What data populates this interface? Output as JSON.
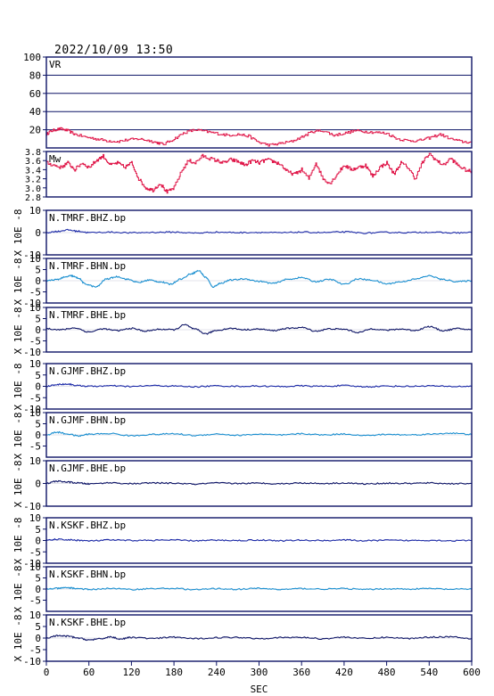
{
  "title": "2022/10/09  13:50",
  "chart_data": {
    "type": "line",
    "x_axis": {
      "label": "SEC",
      "range": [
        0,
        600
      ],
      "ticks": [
        0,
        60,
        120,
        180,
        240,
        300,
        360,
        420,
        480,
        540,
        600
      ]
    },
    "panels": [
      {
        "id": "vr",
        "label": "VR",
        "ylim": [
          0,
          100
        ],
        "yticks": [
          20,
          40,
          60,
          80,
          100
        ],
        "gridlines": [
          20,
          40,
          60,
          80
        ],
        "color": "#e0184a",
        "x": [
          0,
          5,
          12,
          20,
          30,
          40,
          55,
          70,
          85,
          100,
          115,
          130,
          145,
          155,
          165,
          180,
          195,
          210,
          225,
          240,
          255,
          270,
          285,
          300,
          315,
          330,
          345,
          360,
          375,
          390,
          405,
          420,
          435,
          450,
          465,
          480,
          495,
          510,
          525,
          540,
          555,
          570,
          585,
          600
        ],
        "values": [
          15,
          18,
          20,
          21,
          19,
          15,
          12,
          10,
          8,
          7,
          9,
          10,
          8,
          6,
          4,
          10,
          17,
          20,
          18,
          16,
          14,
          15,
          13,
          6,
          3,
          5,
          7,
          12,
          18,
          19,
          14,
          16,
          19,
          18,
          17,
          16,
          10,
          8,
          8,
          11,
          15,
          10,
          7,
          6
        ]
      },
      {
        "id": "mw",
        "label": "Mw",
        "ylim": [
          2.8,
          3.8
        ],
        "yticks": [
          2.8,
          3.0,
          3.2,
          3.4,
          3.6,
          3.8
        ],
        "gridlines": [],
        "color": "#e0184a",
        "x": [
          0,
          10,
          20,
          30,
          40,
          50,
          60,
          70,
          80,
          90,
          100,
          110,
          120,
          130,
          140,
          150,
          160,
          170,
          180,
          190,
          200,
          210,
          220,
          230,
          240,
          250,
          260,
          270,
          280,
          290,
          300,
          310,
          320,
          330,
          340,
          350,
          360,
          370,
          380,
          390,
          400,
          410,
          420,
          430,
          440,
          450,
          460,
          470,
          480,
          490,
          500,
          510,
          520,
          530,
          540,
          550,
          560,
          570,
          580,
          590,
          600
        ],
        "values": [
          3.55,
          3.5,
          3.45,
          3.55,
          3.4,
          3.55,
          3.45,
          3.6,
          3.7,
          3.5,
          3.55,
          3.45,
          3.55,
          3.2,
          3.0,
          2.95,
          3.1,
          2.9,
          3.0,
          3.35,
          3.6,
          3.55,
          3.7,
          3.65,
          3.6,
          3.55,
          3.62,
          3.58,
          3.5,
          3.6,
          3.55,
          3.62,
          3.58,
          3.52,
          3.35,
          3.3,
          3.4,
          3.2,
          3.55,
          3.2,
          3.1,
          3.3,
          3.5,
          3.4,
          3.45,
          3.5,
          3.25,
          3.45,
          3.55,
          3.3,
          3.55,
          3.45,
          3.2,
          3.55,
          3.75,
          3.6,
          3.5,
          3.65,
          3.5,
          3.4,
          3.35
        ]
      },
      {
        "id": "tmrf-bhz",
        "label": "N.TMRF.BHZ.bp",
        "ylim": [
          -10,
          10
        ],
        "yticks": [
          -10,
          0,
          10
        ],
        "color": "#1c2aa8",
        "x": [
          0,
          15,
          30,
          45,
          60,
          90,
          120,
          150,
          180,
          210,
          240,
          270,
          300,
          330,
          360,
          390,
          420,
          450,
          480,
          510,
          540,
          570,
          600
        ],
        "values": [
          0,
          0.5,
          1.2,
          0.6,
          0,
          0.2,
          -0.1,
          0.1,
          0.2,
          -0.2,
          0.2,
          0,
          0.1,
          -0.1,
          0.2,
          0,
          0.3,
          -0.2,
          0.1,
          0,
          0.2,
          -0.1,
          0
        ]
      },
      {
        "id": "tmrf-bhn",
        "label": "N.TMRF.BHN.bp",
        "ylim": [
          -10,
          10
        ],
        "yticks": [
          -10,
          -5,
          0,
          5,
          10
        ],
        "color": "#1a8fd0",
        "x": [
          0,
          15,
          25,
          35,
          45,
          55,
          70,
          85,
          100,
          115,
          130,
          145,
          160,
          175,
          190,
          205,
          215,
          225,
          235,
          245,
          260,
          280,
          300,
          320,
          340,
          360,
          380,
          400,
          420,
          440,
          460,
          480,
          500,
          520,
          540,
          560,
          580,
          600
        ],
        "values": [
          0,
          0.5,
          1.5,
          2.2,
          1.2,
          -1.5,
          -2.8,
          0.8,
          1.8,
          0.6,
          -0.8,
          0.3,
          -0.5,
          -1.5,
          0.8,
          3.2,
          4.5,
          1.5,
          -2.8,
          -1.2,
          0.3,
          0.8,
          -0.3,
          -1.2,
          0.6,
          1.4,
          -0.4,
          0.6,
          -1.6,
          0.8,
          0.2,
          -1.4,
          -0.5,
          0.7,
          2.2,
          0.5,
          -0.4,
          0
        ]
      },
      {
        "id": "tmrf-bhe",
        "label": "N.TMRF.BHE.bp",
        "ylim": [
          -10,
          10
        ],
        "yticks": [
          -10,
          -5,
          0,
          5,
          10
        ],
        "color": "#0d1466",
        "x": [
          0,
          20,
          40,
          60,
          80,
          100,
          120,
          140,
          160,
          180,
          195,
          210,
          225,
          240,
          260,
          280,
          300,
          320,
          340,
          360,
          380,
          400,
          420,
          440,
          460,
          480,
          500,
          520,
          540,
          560,
          580,
          600
        ],
        "values": [
          0.5,
          0,
          0.8,
          -1.0,
          0.4,
          -0.4,
          0.6,
          -0.6,
          0.2,
          0,
          2.2,
          0.2,
          -1.8,
          -0.3,
          0.6,
          0,
          0.3,
          -0.4,
          0.6,
          1.0,
          -0.6,
          0.4,
          0.2,
          -1.2,
          0.4,
          -0.2,
          0.3,
          -0.3,
          1.4,
          -0.4,
          0.5,
          0
        ]
      },
      {
        "id": "gjmf-bhz",
        "label": "N.GJMF.BHZ.bp",
        "ylim": [
          -10,
          10
        ],
        "yticks": [
          -10,
          -5,
          0,
          5,
          10
        ],
        "color": "#1c2aa8",
        "x": [
          0,
          15,
          30,
          45,
          60,
          90,
          120,
          150,
          180,
          210,
          240,
          270,
          300,
          330,
          360,
          390,
          420,
          450,
          480,
          510,
          540,
          570,
          600
        ],
        "values": [
          0,
          0.8,
          1.0,
          0.3,
          0,
          0.2,
          -0.1,
          0.3,
          0.1,
          -0.2,
          0.2,
          0,
          0.1,
          -0.1,
          0.2,
          0,
          0.3,
          -0.2,
          0.1,
          0,
          0.2,
          -0.1,
          0
        ]
      },
      {
        "id": "gjmf-bhn",
        "label": "N.GJMF.BHN.bp",
        "ylim": [
          -10,
          10
        ],
        "yticks": [
          -5,
          0,
          5,
          10
        ],
        "color": "#1a8fd0",
        "x": [
          0,
          15,
          30,
          45,
          60,
          90,
          120,
          150,
          180,
          210,
          240,
          270,
          300,
          330,
          360,
          390,
          420,
          450,
          480,
          510,
          540,
          570,
          600
        ],
        "values": [
          0,
          1.2,
          0.4,
          -0.5,
          0.3,
          0.6,
          -0.4,
          0.2,
          0.5,
          -0.3,
          0.4,
          -0.2,
          0.3,
          -0.1,
          0.5,
          0,
          0.4,
          -0.3,
          0.2,
          0,
          0.3,
          0.8,
          0.2
        ]
      },
      {
        "id": "gjmf-bhe",
        "label": "N.GJMF.BHE.bp",
        "ylim": [
          -10,
          10
        ],
        "yticks": [
          -10,
          0,
          10
        ],
        "color": "#0d1466",
        "x": [
          0,
          15,
          30,
          45,
          60,
          90,
          120,
          150,
          180,
          210,
          240,
          270,
          300,
          330,
          360,
          390,
          420,
          450,
          480,
          510,
          540,
          570,
          600
        ],
        "values": [
          0,
          1.0,
          0.6,
          0.2,
          -0.2,
          0.3,
          -0.1,
          0.2,
          0.1,
          -0.3,
          0.2,
          0,
          0.1,
          -0.1,
          0.2,
          0,
          0.2,
          -0.2,
          0.1,
          0,
          0.2,
          -0.1,
          0
        ]
      },
      {
        "id": "kskf-bhz",
        "label": "N.KSKF.BHZ.bp",
        "ylim": [
          -10,
          10
        ],
        "yticks": [
          -10,
          -5,
          0,
          5,
          10
        ],
        "color": "#1c2aa8",
        "x": [
          0,
          15,
          30,
          45,
          60,
          90,
          120,
          150,
          180,
          210,
          240,
          270,
          300,
          330,
          360,
          390,
          420,
          450,
          480,
          510,
          540,
          570,
          600
        ],
        "values": [
          0,
          0.5,
          0.3,
          0.1,
          -0.2,
          0.2,
          0,
          0.1,
          0.2,
          -0.1,
          0.1,
          0,
          0.2,
          -0.1,
          0.1,
          0,
          0.2,
          -0.1,
          0.1,
          0,
          0.1,
          -0.1,
          0
        ]
      },
      {
        "id": "kskf-bhn",
        "label": "N.KSKF.BHN.bp",
        "ylim": [
          -10,
          10
        ],
        "yticks": [
          -5,
          0,
          5,
          10
        ],
        "color": "#1a8fd0",
        "x": [
          0,
          15,
          30,
          45,
          60,
          90,
          120,
          150,
          180,
          210,
          240,
          270,
          300,
          330,
          360,
          390,
          420,
          450,
          480,
          510,
          540,
          570,
          600
        ],
        "values": [
          0,
          0.3,
          0.6,
          0.2,
          -0.2,
          0.3,
          -0.2,
          0.2,
          0.3,
          -0.3,
          0.2,
          -0.1,
          0.3,
          -0.2,
          0.2,
          0,
          0.2,
          -0.2,
          0.1,
          0,
          0.2,
          -0.1,
          0
        ]
      },
      {
        "id": "kskf-bhe",
        "label": "N.KSKF.BHE.bp",
        "ylim": [
          -10,
          10
        ],
        "yticks": [
          -10,
          -5,
          0,
          5,
          10
        ],
        "color": "#0d1466",
        "x": [
          0,
          15,
          30,
          45,
          60,
          75,
          90,
          105,
          120,
          150,
          180,
          210,
          240,
          270,
          300,
          330,
          360,
          390,
          420,
          450,
          480,
          510,
          540,
          570,
          600
        ],
        "values": [
          0,
          1.0,
          0.8,
          0,
          -0.8,
          -0.4,
          0.5,
          -0.4,
          0.3,
          -0.2,
          0.4,
          -0.3,
          0.2,
          0.3,
          -0.2,
          0.2,
          0.3,
          -0.3,
          0.4,
          -0.2,
          0.3,
          -0.2,
          0.4,
          0.6,
          -0.2
        ]
      }
    ],
    "ylabels": [
      "X 10E -8",
      "X 10E -8",
      "X 10E -8",
      "X 10E -8",
      "X 10E -8",
      "X 10E -8",
      "X 10E -8",
      "X 10E -8",
      "X 10E -8"
    ]
  }
}
